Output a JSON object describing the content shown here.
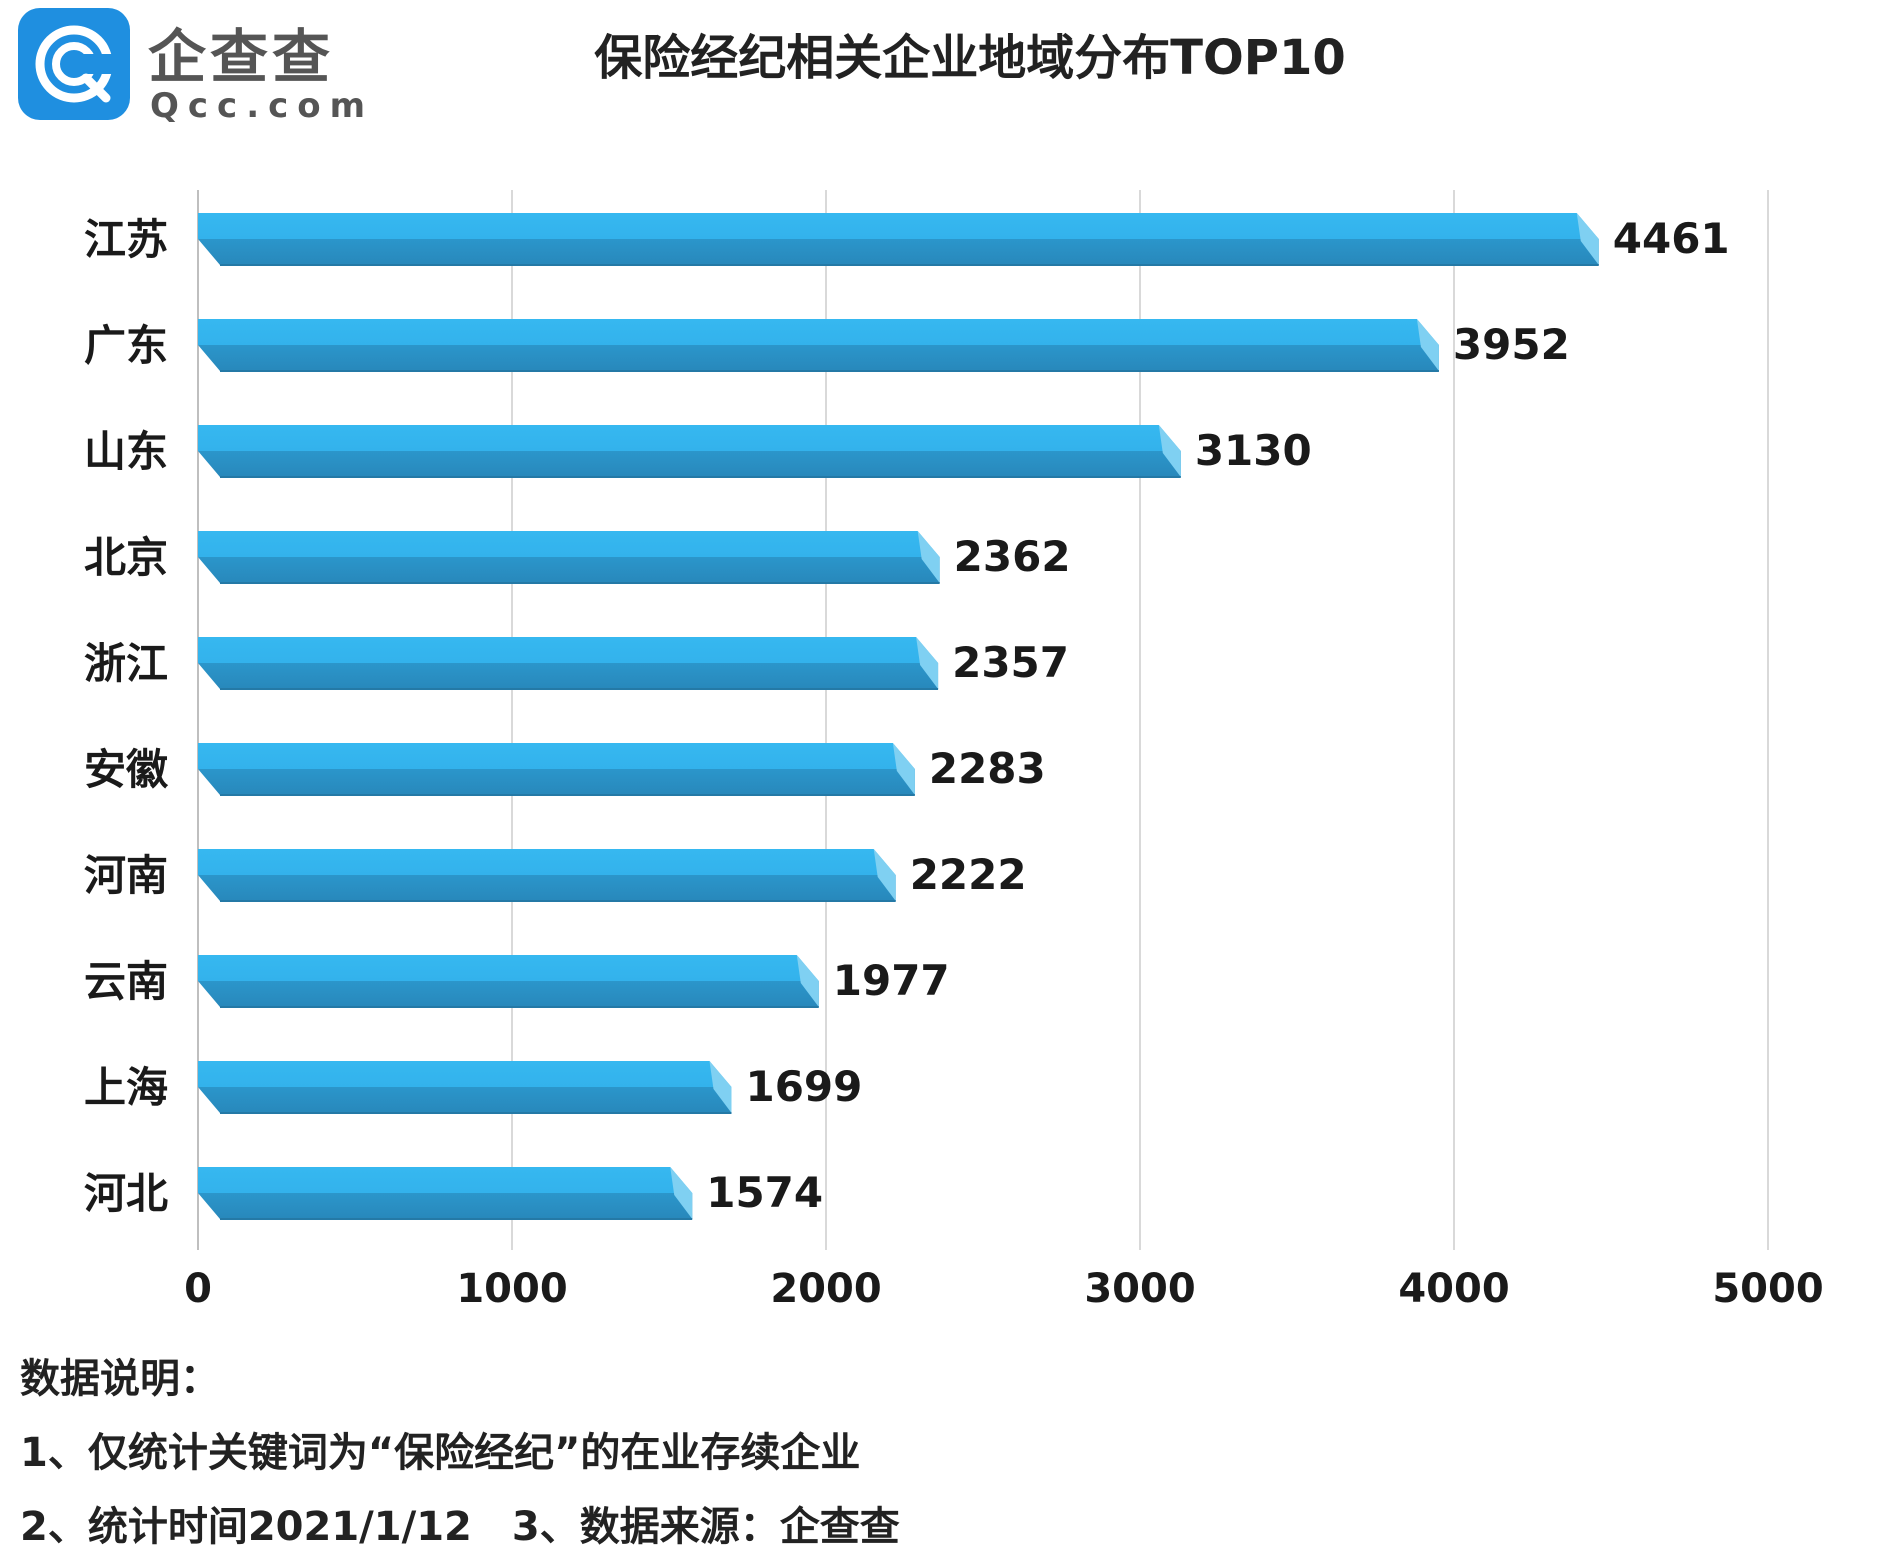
{
  "logo": {
    "text": "企查查",
    "sub": "Qcc.com"
  },
  "chart_data": {
    "type": "bar",
    "orientation": "horizontal",
    "title": "保险经纪相关企业地域分布TOP10",
    "categories": [
      "江苏",
      "广东",
      "山东",
      "北京",
      "浙江",
      "安徽",
      "河南",
      "云南",
      "上海",
      "河北"
    ],
    "values": [
      4461,
      3952,
      3130,
      2362,
      2357,
      2283,
      2222,
      1977,
      1699,
      1574
    ],
    "xlim": [
      0,
      5000
    ],
    "xticks": [
      "0",
      "1000",
      "2000",
      "3000",
      "4000",
      "5000"
    ],
    "grid": true,
    "legend": "none",
    "colors": {
      "bar_top": "#33b5ee",
      "bar_bottom": "#2b93c6",
      "bar_end": "#7fd0f2",
      "grid": "#d9d9d9"
    }
  },
  "notes": {
    "heading": "数据说明：",
    "line1": "1、仅统计关键词为“保险经纪”的在业存续企业",
    "line2": "2、统计时间2021/1/12　3、数据来源：企查查"
  }
}
